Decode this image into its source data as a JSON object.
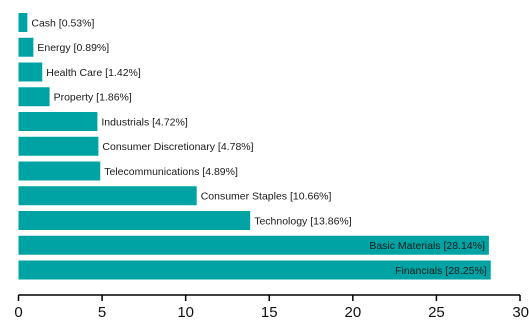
{
  "chart_data": {
    "type": "bar",
    "orientation": "horizontal",
    "categories": [
      "Cash [0.53%]",
      "Energy [0.89%]",
      "Health Care [1.42%]",
      "Property [1.86%]",
      "Industrials [4.72%]",
      "Consumer Discretionary [4.78%]",
      "Telecommunications [4.89%]",
      "Consumer Staples [10.66%]",
      "Technology [13.86%]",
      "Basic Materials [28.14%]",
      "Financials [28.25%]"
    ],
    "values": [
      0.53,
      0.89,
      1.42,
      1.86,
      4.72,
      4.78,
      4.89,
      10.66,
      13.86,
      28.14,
      28.25
    ],
    "xlim": [
      0,
      30
    ],
    "xticks": [
      0,
      5,
      10,
      15,
      20,
      25,
      30
    ],
    "xtick_labels": [
      "0",
      "5",
      "10",
      "15",
      "20",
      "25",
      "30"
    ],
    "labels_inside_threshold": 20,
    "bar_color": "#00a3a3",
    "grid": false,
    "legend": "none"
  }
}
